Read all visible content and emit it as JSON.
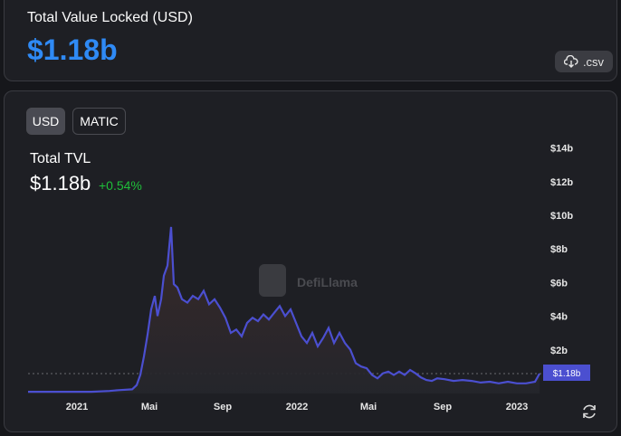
{
  "header": {
    "title": "Total Value Locked (USD)",
    "value": "$1.18b",
    "csv_label": ".csv"
  },
  "denominations": [
    {
      "label": "USD",
      "selected": true
    },
    {
      "label": "MATIC",
      "selected": false
    }
  ],
  "summary": {
    "label": "Total TVL",
    "value": "$1.18b",
    "change": "+0.54%"
  },
  "watermark": "DefiLlama",
  "colors": {
    "accent": "#2f8af5",
    "line": "#4b4fd0",
    "positive": "#1fbf3a",
    "badge": "#4b4fd0"
  },
  "chart_data": {
    "type": "area",
    "y_ticks": [
      "$2b",
      "$4b",
      "$6b",
      "$8b",
      "$10b",
      "$12b",
      "$14b"
    ],
    "x_ticks": [
      "2021",
      "Mai",
      "Sep",
      "2022",
      "Mai",
      "Sep",
      "2023"
    ],
    "ylim": [
      0,
      14
    ],
    "current_label": "$1.18b",
    "current_value": 1.18,
    "series": [
      {
        "values": [
          [
            0,
            0.1
          ],
          [
            40,
            0.1
          ],
          [
            70,
            0.1
          ],
          [
            90,
            0.15
          ],
          [
            100,
            0.2
          ],
          [
            115,
            0.25
          ],
          [
            120,
            0.5
          ],
          [
            124,
            1.1
          ],
          [
            128,
            2.2
          ],
          [
            132,
            3.5
          ],
          [
            136,
            5
          ],
          [
            140,
            5.8
          ],
          [
            143,
            4.6
          ],
          [
            147,
            5.6
          ],
          [
            150,
            7
          ],
          [
            154,
            7.6
          ],
          [
            158,
            9.9
          ],
          [
            161,
            6.5
          ],
          [
            165,
            6.3
          ],
          [
            170,
            5.6
          ],
          [
            176,
            5.4
          ],
          [
            182,
            5.8
          ],
          [
            188,
            5.6
          ],
          [
            194,
            6.1
          ],
          [
            200,
            5.3
          ],
          [
            206,
            5.6
          ],
          [
            212,
            5.1
          ],
          [
            218,
            4.5
          ],
          [
            224,
            3.6
          ],
          [
            230,
            3.8
          ],
          [
            236,
            3.4
          ],
          [
            242,
            4.2
          ],
          [
            248,
            4.5
          ],
          [
            254,
            4.3
          ],
          [
            260,
            4.7
          ],
          [
            266,
            4.4
          ],
          [
            272,
            4.8
          ],
          [
            278,
            5.2
          ],
          [
            284,
            4.6
          ],
          [
            290,
            5.0
          ],
          [
            296,
            4.2
          ],
          [
            302,
            3.4
          ],
          [
            308,
            3.0
          ],
          [
            314,
            3.6
          ],
          [
            320,
            2.8
          ],
          [
            326,
            3.3
          ],
          [
            332,
            3.9
          ],
          [
            338,
            3.0
          ],
          [
            344,
            3.6
          ],
          [
            350,
            3.0
          ],
          [
            356,
            2.6
          ],
          [
            362,
            1.8
          ],
          [
            368,
            1.6
          ],
          [
            374,
            1.5
          ],
          [
            380,
            1.1
          ],
          [
            386,
            0.9
          ],
          [
            392,
            1.2
          ],
          [
            398,
            1.3
          ],
          [
            404,
            1.1
          ],
          [
            410,
            1.3
          ],
          [
            416,
            1.1
          ],
          [
            422,
            1.4
          ],
          [
            428,
            1.2
          ],
          [
            434,
            0.95
          ],
          [
            440,
            0.8
          ],
          [
            446,
            0.75
          ],
          [
            452,
            0.9
          ],
          [
            460,
            0.85
          ],
          [
            470,
            0.75
          ],
          [
            480,
            0.8
          ],
          [
            490,
            0.75
          ],
          [
            500,
            0.65
          ],
          [
            510,
            0.7
          ],
          [
            520,
            0.6
          ],
          [
            530,
            0.7
          ],
          [
            540,
            0.6
          ],
          [
            550,
            0.6
          ],
          [
            560,
            0.7
          ],
          [
            565,
            1.18
          ]
        ]
      }
    ]
  }
}
